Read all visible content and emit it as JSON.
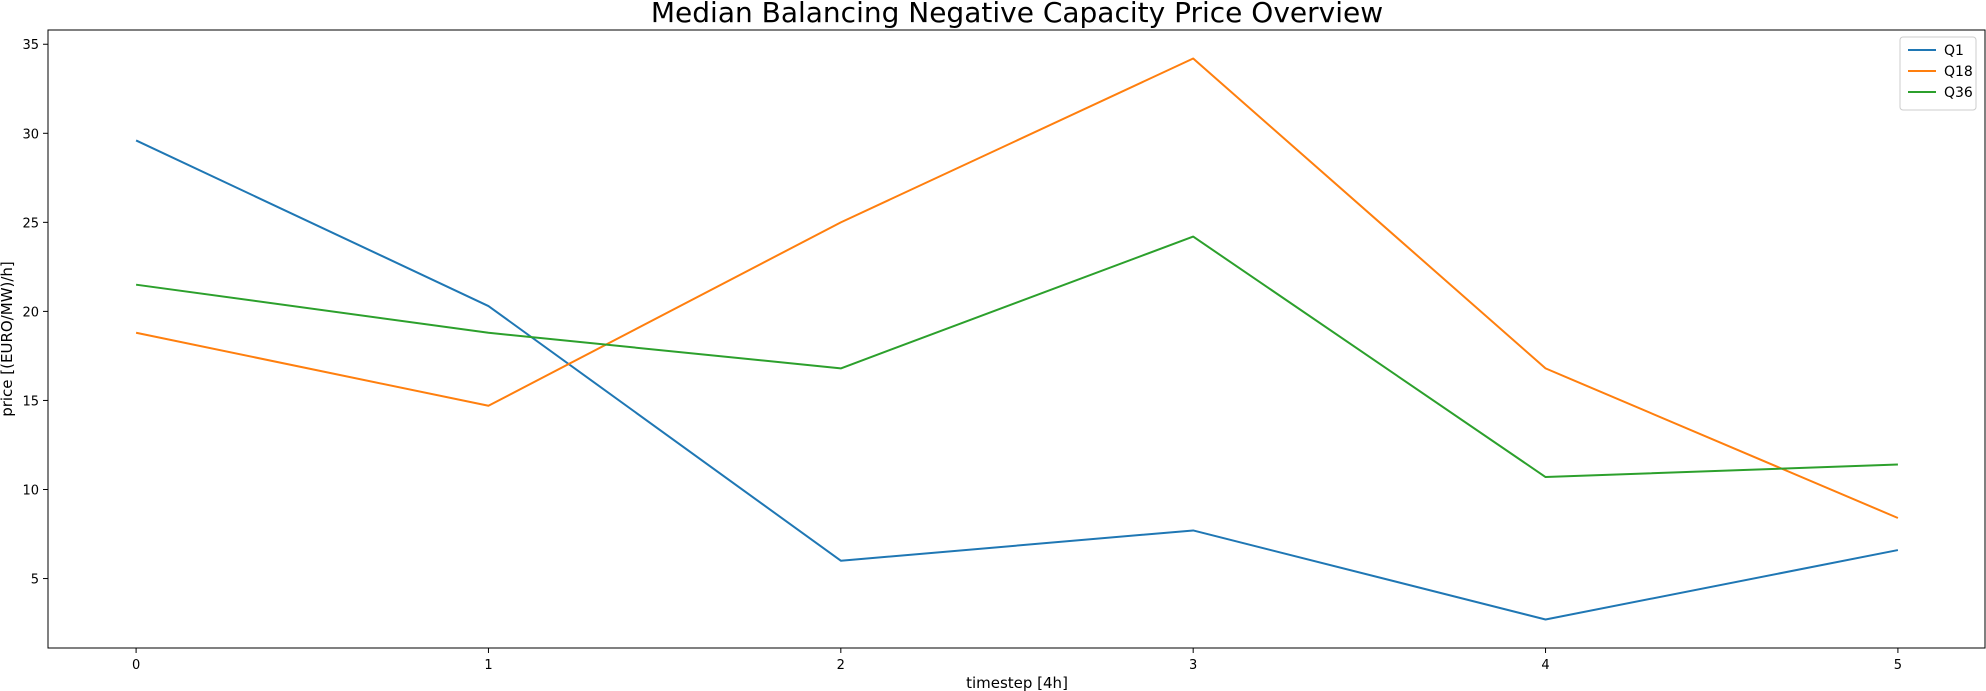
{
  "chart_data": {
    "type": "line",
    "title": "Median Balancing Negative Capacity Price Overview",
    "xlabel": "timestep [4h]",
    "ylabel": "price [(EURO/MW)/h]",
    "x": [
      0,
      1,
      2,
      3,
      4,
      5
    ],
    "xticks": [
      "0",
      "1",
      "2",
      "3",
      "4",
      "5"
    ],
    "yticks": [
      5,
      10,
      15,
      20,
      25,
      30,
      35
    ],
    "xlim": [
      -0.25,
      5.25
    ],
    "ylim": [
      1.1,
      35.8
    ],
    "legend_position": "top-right",
    "series": [
      {
        "name": "Q1",
        "color": "#1f77b4",
        "values": [
          29.6,
          20.3,
          6.0,
          7.7,
          2.7,
          6.6
        ]
      },
      {
        "name": "Q18",
        "color": "#ff7f0e",
        "values": [
          18.8,
          14.7,
          25.0,
          34.2,
          16.8,
          8.4
        ]
      },
      {
        "name": "Q36",
        "color": "#2ca02c",
        "values": [
          21.5,
          18.8,
          16.8,
          24.2,
          10.7,
          11.4
        ]
      }
    ]
  }
}
